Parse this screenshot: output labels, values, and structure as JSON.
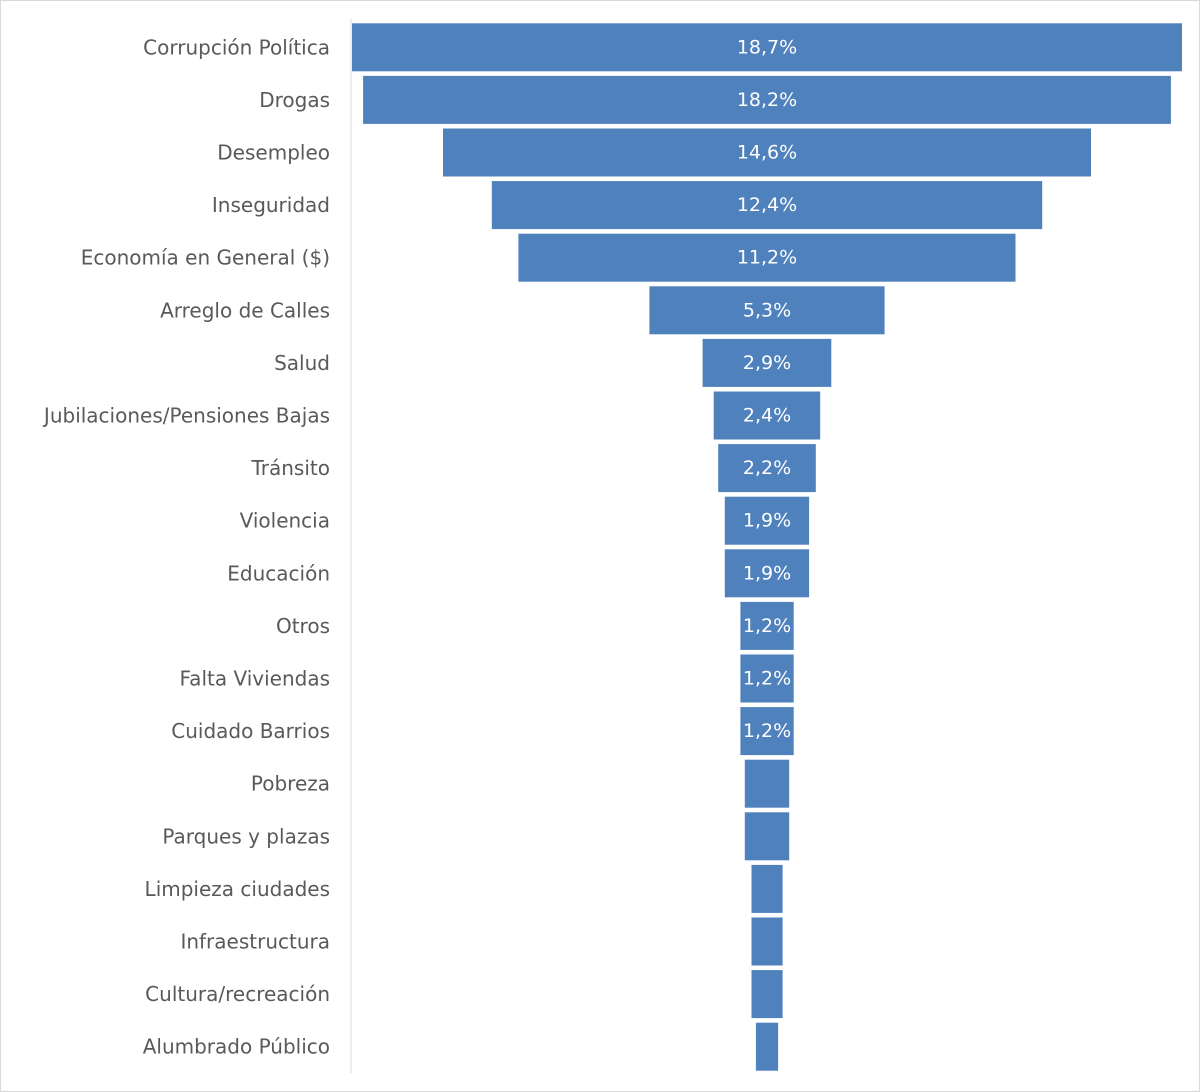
{
  "chart_data": {
    "type": "bar",
    "orientation": "horizontal-funnel",
    "title": "",
    "xlabel": "",
    "ylabel": "",
    "categories": [
      "Corrupción Política",
      "Drogas",
      "Desempleo",
      "Inseguridad",
      "Economía en General ($)",
      "Arreglo de Calles",
      "Salud",
      "Jubilaciones/Pensiones Bajas",
      "Tránsito",
      "Violencia",
      "Educación",
      "Otros",
      "Falta Viviendas",
      "Cuidado Barrios",
      "Pobreza",
      "Parques y plazas",
      "Limpieza ciudades",
      "Infraestructura",
      "Cultura/recreación",
      "Alumbrado Público"
    ],
    "values": [
      18.7,
      18.2,
      14.6,
      12.4,
      11.2,
      5.3,
      2.9,
      2.4,
      2.2,
      1.9,
      1.9,
      1.2,
      1.2,
      1.2,
      1.0,
      1.0,
      0.7,
      0.7,
      0.7,
      0.5
    ],
    "data_labels": [
      "18,7%",
      "18,2%",
      "14,6%",
      "12,4%",
      "11,2%",
      "5,3%",
      "2,9%",
      "2,4%",
      "2,2%",
      "1,9%",
      "1,9%",
      "1,2%",
      "1,2%",
      "1,2%",
      "",
      "",
      "",
      "",
      "",
      ""
    ],
    "unit": "%",
    "bar_color": "#4f81bd",
    "label_color": "#595959",
    "data_label_color": "#ffffff",
    "legend": "none",
    "grid": false
  }
}
